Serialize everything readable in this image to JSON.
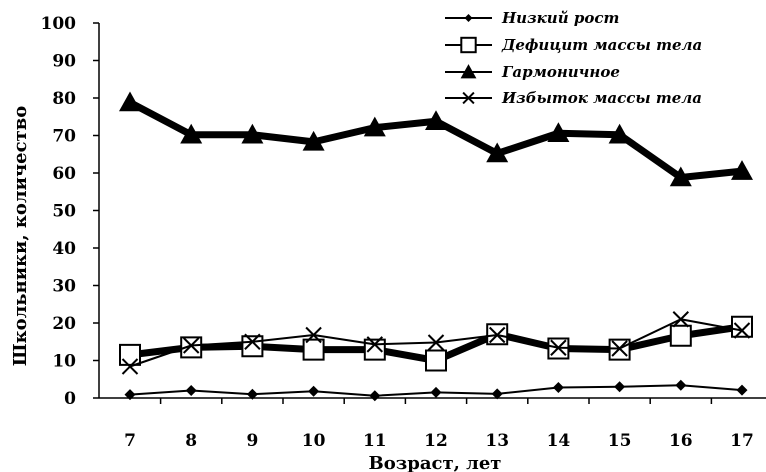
{
  "chart_data": {
    "type": "line",
    "title": "",
    "xlabel": "Возраст, лет",
    "ylabel": "Школьники, количество",
    "categories": [
      "7",
      "8",
      "9",
      "10",
      "11",
      "12",
      "13",
      "14",
      "15",
      "16",
      "17"
    ],
    "ylim": [
      0,
      100
    ],
    "yticks": [
      "0",
      "10",
      "20",
      "30",
      "40",
      "50",
      "60",
      "70",
      "80",
      "90",
      "100"
    ],
    "legend_position": "top-right",
    "grid": false,
    "series": [
      {
        "name": "Низкий рост",
        "marker": "diamond",
        "weight": "thin",
        "values": [
          0.9,
          2.0,
          1.0,
          1.8,
          0.6,
          1.5,
          1.1,
          2.8,
          3.0,
          3.4,
          2.1
        ]
      },
      {
        "name": "Дефицит массы тела",
        "marker": "square",
        "weight": "thick",
        "values": [
          11.5,
          13.5,
          13.8,
          12.9,
          12.9,
          10.0,
          17.0,
          13.2,
          12.9,
          16.6,
          19.0
        ]
      },
      {
        "name": "Гармоничное",
        "marker": "triangle",
        "weight": "thick",
        "values": [
          78.8,
          70.2,
          70.2,
          68.3,
          72.1,
          73.8,
          65.2,
          70.6,
          70.2,
          58.8,
          60.5
        ]
      },
      {
        "name": "Избыток массы тела",
        "marker": "cross",
        "weight": "thin",
        "values": [
          8.4,
          14.0,
          15.0,
          16.8,
          14.3,
          14.8,
          16.8,
          13.4,
          13.2,
          21.0,
          18.0
        ]
      }
    ]
  }
}
